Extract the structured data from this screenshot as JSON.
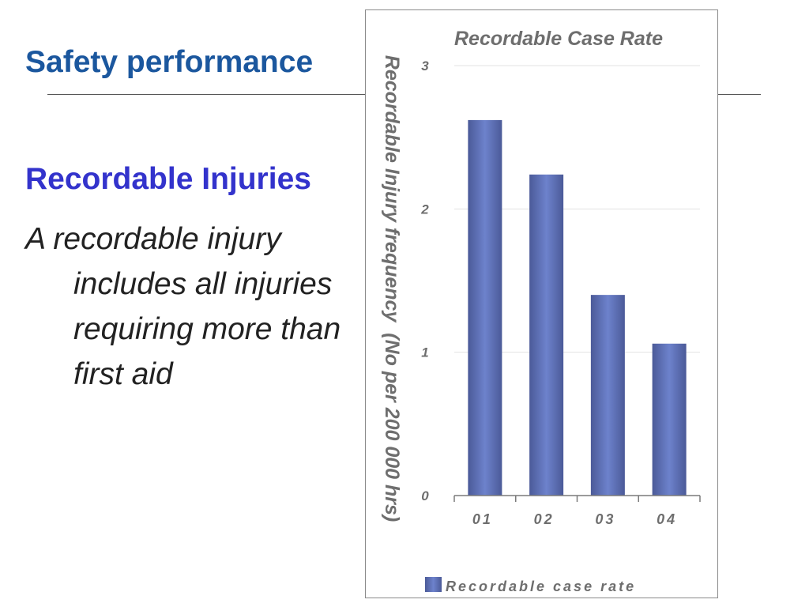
{
  "slide": {
    "title": "Safety performance",
    "heading": "Recordable Injuries",
    "body_lines": [
      "A recordable injury",
      "includes all injuries",
      "requiring more than",
      "first aid"
    ]
  },
  "colors": {
    "title": "#1b579e",
    "heading": "#3333cc",
    "body_text": "#222222",
    "chart_text": "#6e6e6e",
    "bar_edge": "#4b5a98",
    "bar_center": "#6d82cc",
    "gridline": "#e3e3e3",
    "axis": "#7a7a7a",
    "chart_border": "#8a8a8a",
    "rule": "#555555"
  },
  "chart_data": {
    "type": "bar",
    "title": "Recordable Case Rate",
    "ylabel": "Recordable Injury frequency  (No per 200 000 hrs)",
    "categories": [
      "01",
      "02",
      "03",
      "04"
    ],
    "series": [
      {
        "name": "Recordable case rate",
        "values": [
          2.62,
          2.24,
          1.4,
          1.06
        ]
      }
    ],
    "ylim": [
      0,
      3
    ],
    "yticks": [
      0,
      1,
      2,
      3
    ],
    "grid": true,
    "legend": "bottom-left"
  }
}
